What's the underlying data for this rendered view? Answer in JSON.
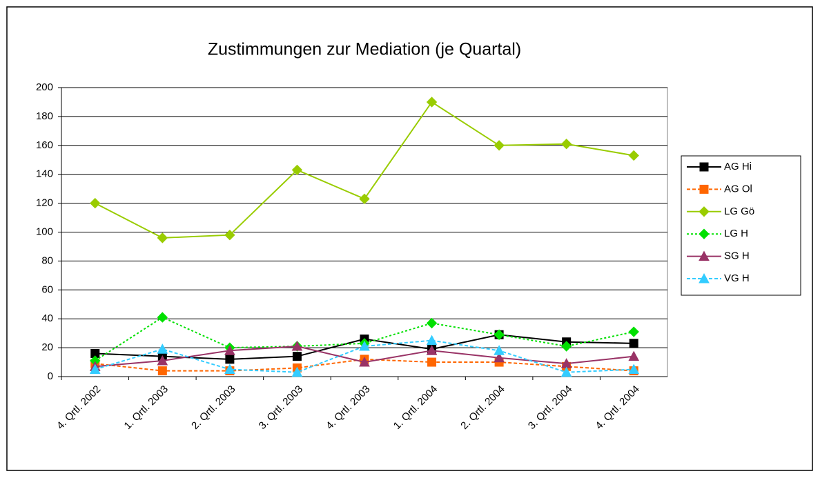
{
  "chart_data": {
    "type": "line",
    "title": "Zustimmungen zur Mediation (je Quartal)",
    "categories": [
      "4. Qrtl. 2002",
      "1. Qrtl. 2003",
      "2. Qrtl. 2003",
      "3. Qrtl. 2003",
      "4. Qrtl. 2003",
      "1. Qrtl. 2004",
      "2. Qrtl. 2004",
      "3. Qrtl. 2004",
      "4. Qrtl. 2004"
    ],
    "series": [
      {
        "name": "AG Hi",
        "color": "#000000",
        "dash": "solid",
        "marker": "square",
        "values": [
          16,
          14,
          12,
          14,
          26,
          19,
          29,
          24,
          23
        ]
      },
      {
        "name": "AG Ol",
        "color": "#ff6600",
        "dash": "dashed",
        "marker": "square",
        "values": [
          9,
          4,
          4,
          6,
          12,
          10,
          10,
          7,
          4
        ]
      },
      {
        "name": "LG Gö",
        "color": "#99cc00",
        "dash": "solid",
        "marker": "diamond",
        "values": [
          120,
          96,
          98,
          143,
          123,
          190,
          160,
          161,
          153
        ]
      },
      {
        "name": "LG H",
        "color": "#00e000",
        "dash": "dotted",
        "marker": "diamond",
        "values": [
          11,
          41,
          20,
          21,
          23,
          37,
          29,
          21,
          31
        ]
      },
      {
        "name": "SG H",
        "color": "#993366",
        "dash": "solid",
        "marker": "triangle",
        "values": [
          7,
          11,
          18,
          21,
          10,
          18,
          13,
          9,
          14
        ]
      },
      {
        "name": "VG H",
        "color": "#33ccff",
        "dash": "dashed",
        "marker": "triangle",
        "values": [
          5,
          19,
          5,
          3,
          21,
          25,
          18,
          3,
          5
        ]
      }
    ],
    "ylim": [
      0,
      200
    ],
    "yticks": [
      0,
      20,
      40,
      60,
      80,
      100,
      120,
      140,
      160,
      180,
      200
    ],
    "grid": true,
    "legend": "right"
  }
}
